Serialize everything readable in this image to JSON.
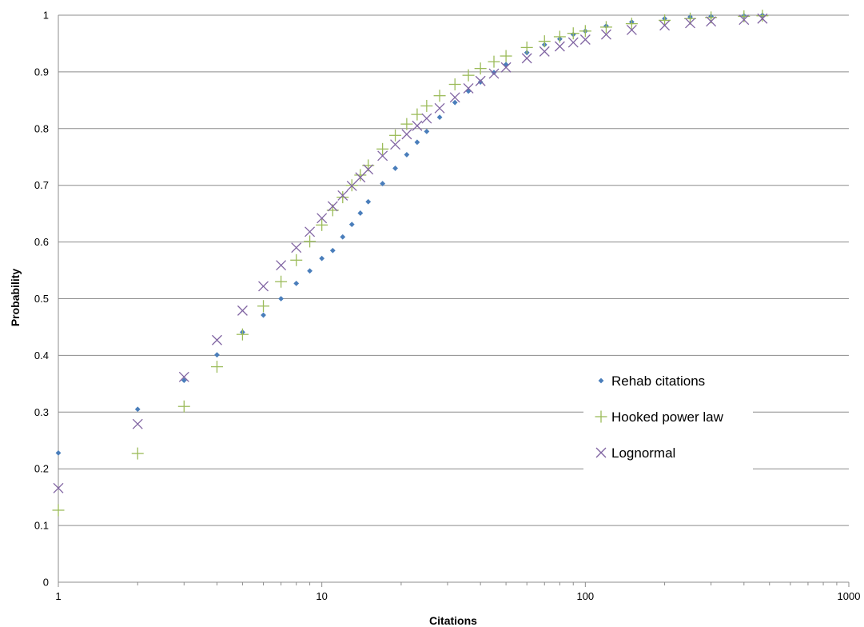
{
  "chart_data": {
    "type": "scatter",
    "xlabel": "Citations",
    "ylabel": "Probability",
    "x_scale": "log",
    "xlim": [
      1,
      1000
    ],
    "ylim": [
      0,
      1
    ],
    "x_ticks": [
      "1",
      "10",
      "100",
      "1000"
    ],
    "y_ticks": [
      "0",
      "0.1",
      "0.2",
      "0.3",
      "0.4",
      "0.5",
      "0.6",
      "0.7",
      "0.8",
      "0.9",
      "1"
    ],
    "grid": "horizontal",
    "legend_position": "right",
    "series": [
      {
        "name": "Rehab citations",
        "marker": "diamond",
        "color": "#4a7ebb",
        "points": [
          [
            1,
            0.228
          ],
          [
            2,
            0.305
          ],
          [
            3,
            0.356
          ],
          [
            4,
            0.401
          ],
          [
            5,
            0.441
          ],
          [
            6,
            0.471
          ],
          [
            7,
            0.5
          ],
          [
            8,
            0.527
          ],
          [
            9,
            0.549
          ],
          [
            10,
            0.571
          ],
          [
            11,
            0.585
          ],
          [
            12,
            0.609
          ],
          [
            13,
            0.631
          ],
          [
            14,
            0.651
          ],
          [
            15,
            0.671
          ],
          [
            17,
            0.703
          ],
          [
            19,
            0.73
          ],
          [
            21,
            0.754
          ],
          [
            23,
            0.776
          ],
          [
            25,
            0.795
          ],
          [
            28,
            0.82
          ],
          [
            32,
            0.846
          ],
          [
            36,
            0.866
          ],
          [
            40,
            0.882
          ],
          [
            45,
            0.899
          ],
          [
            50,
            0.913
          ],
          [
            60,
            0.934
          ],
          [
            70,
            0.948
          ],
          [
            80,
            0.958
          ],
          [
            90,
            0.966
          ],
          [
            100,
            0.972
          ],
          [
            120,
            0.981
          ],
          [
            150,
            0.988
          ],
          [
            200,
            0.994
          ],
          [
            250,
            0.997
          ],
          [
            300,
            0.998
          ],
          [
            400,
            0.999
          ],
          [
            470,
            1.0
          ]
        ]
      },
      {
        "name": "Hooked power law",
        "marker": "plus",
        "color": "#9bbb59",
        "points": [
          [
            1,
            0.127
          ],
          [
            2,
            0.227
          ],
          [
            3,
            0.31
          ],
          [
            4,
            0.38
          ],
          [
            5,
            0.437
          ],
          [
            6,
            0.487
          ],
          [
            7,
            0.53
          ],
          [
            8,
            0.568
          ],
          [
            9,
            0.601
          ],
          [
            10,
            0.63
          ],
          [
            11,
            0.656
          ],
          [
            12,
            0.679
          ],
          [
            13,
            0.7
          ],
          [
            14,
            0.718
          ],
          [
            15,
            0.735
          ],
          [
            17,
            0.764
          ],
          [
            19,
            0.788
          ],
          [
            21,
            0.808
          ],
          [
            23,
            0.825
          ],
          [
            25,
            0.84
          ],
          [
            28,
            0.858
          ],
          [
            32,
            0.878
          ],
          [
            36,
            0.894
          ],
          [
            40,
            0.906
          ],
          [
            45,
            0.918
          ],
          [
            50,
            0.928
          ],
          [
            60,
            0.943
          ],
          [
            70,
            0.954
          ],
          [
            80,
            0.962
          ],
          [
            90,
            0.968
          ],
          [
            100,
            0.972
          ],
          [
            120,
            0.979
          ],
          [
            150,
            0.985
          ],
          [
            200,
            0.991
          ],
          [
            250,
            0.994
          ],
          [
            300,
            0.996
          ],
          [
            400,
            0.998
          ],
          [
            470,
            0.999
          ]
        ]
      },
      {
        "name": "Lognormal",
        "marker": "x",
        "color": "#8064a2",
        "points": [
          [
            1,
            0.166
          ],
          [
            2,
            0.279
          ],
          [
            3,
            0.362
          ],
          [
            4,
            0.427
          ],
          [
            5,
            0.479
          ],
          [
            6,
            0.522
          ],
          [
            7,
            0.559
          ],
          [
            8,
            0.59
          ],
          [
            9,
            0.618
          ],
          [
            10,
            0.642
          ],
          [
            11,
            0.663
          ],
          [
            12,
            0.682
          ],
          [
            13,
            0.699
          ],
          [
            14,
            0.714
          ],
          [
            15,
            0.728
          ],
          [
            17,
            0.752
          ],
          [
            19,
            0.772
          ],
          [
            21,
            0.79
          ],
          [
            23,
            0.805
          ],
          [
            25,
            0.818
          ],
          [
            28,
            0.836
          ],
          [
            32,
            0.855
          ],
          [
            36,
            0.871
          ],
          [
            40,
            0.884
          ],
          [
            45,
            0.897
          ],
          [
            50,
            0.908
          ],
          [
            60,
            0.924
          ],
          [
            70,
            0.936
          ],
          [
            80,
            0.945
          ],
          [
            90,
            0.952
          ],
          [
            100,
            0.957
          ],
          [
            120,
            0.966
          ],
          [
            150,
            0.974
          ],
          [
            200,
            0.982
          ],
          [
            250,
            0.986
          ],
          [
            300,
            0.989
          ],
          [
            400,
            0.992
          ],
          [
            470,
            0.994
          ]
        ]
      }
    ]
  }
}
